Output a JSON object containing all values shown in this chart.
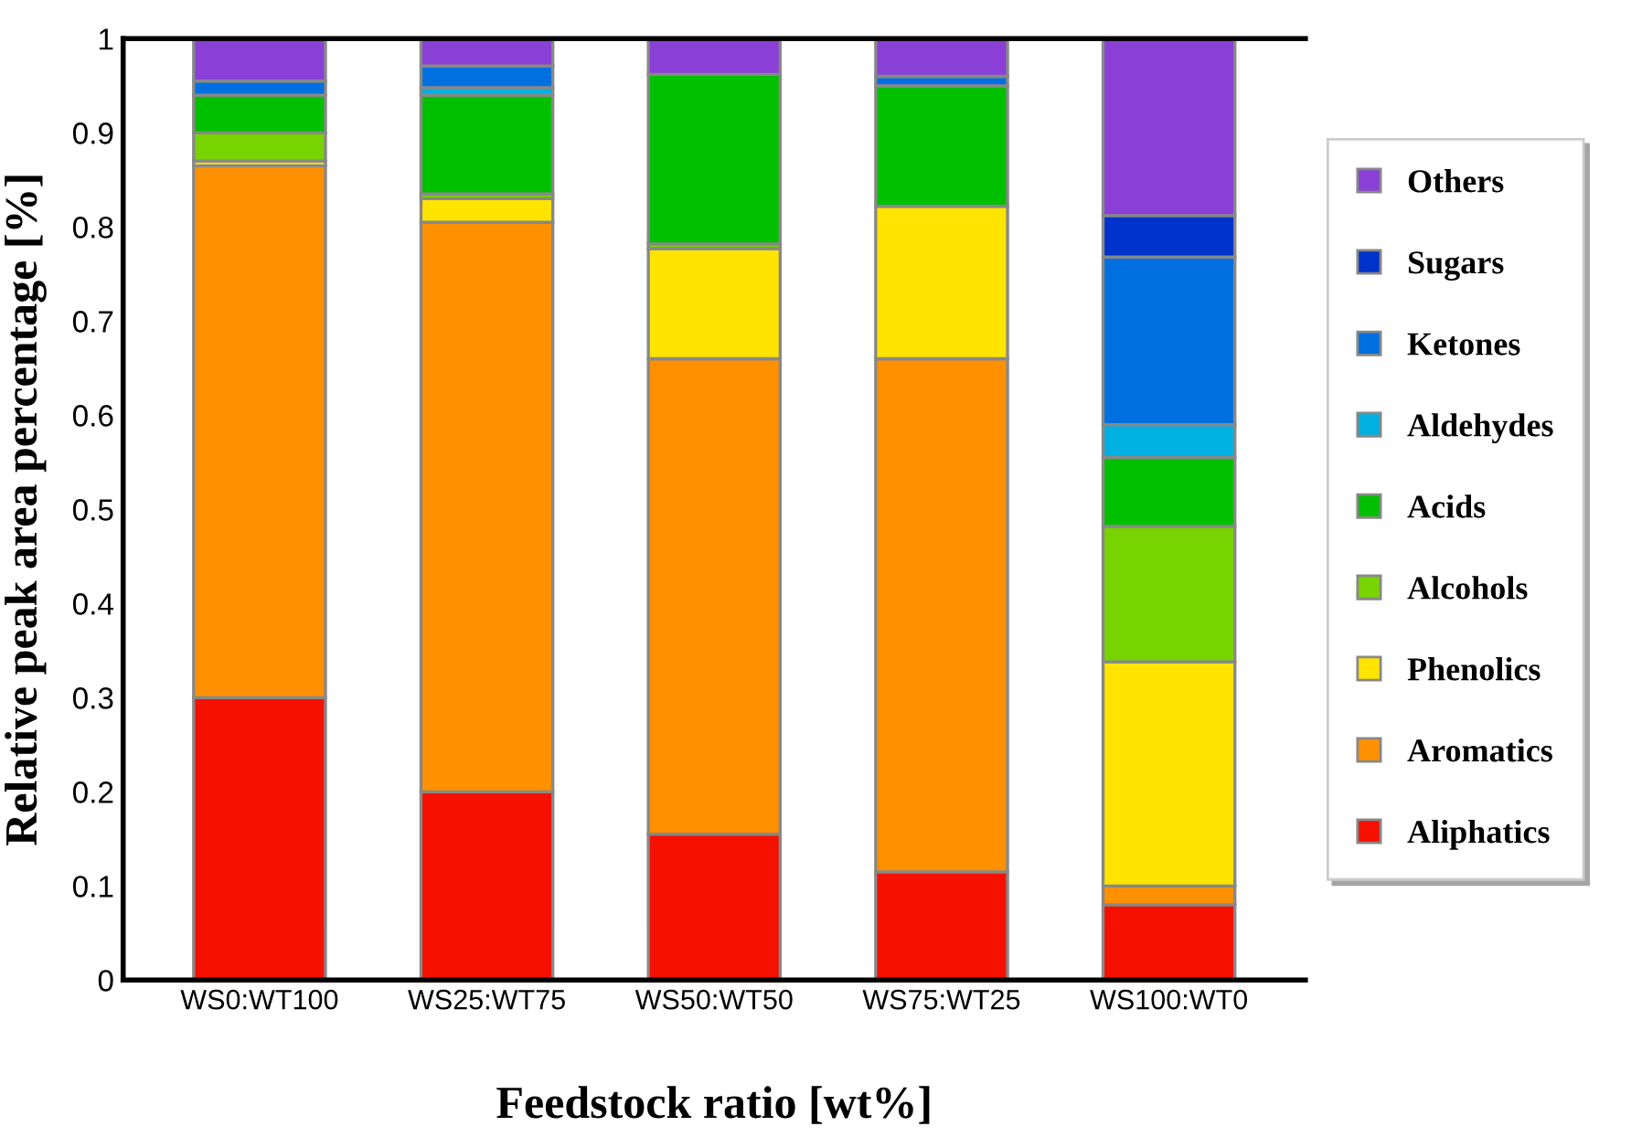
{
  "chart_data": {
    "type": "bar",
    "stacked": true,
    "xlabel": "Feedstock ratio [wt%]",
    "ylabel": "Relative peak area percentage [%]",
    "categories": [
      "WS0:WT100",
      "WS25:WT75",
      "WS50:WT50",
      "WS75:WT25",
      "WS100:WT0"
    ],
    "ylim": [
      0,
      1
    ],
    "yticks": [
      0,
      0.1,
      0.2,
      0.3,
      0.4,
      0.5,
      0.6,
      0.7,
      0.8,
      0.9,
      1
    ],
    "grid": false,
    "legend": "right",
    "series": [
      {
        "name": "Aliphatics",
        "color": "#f51000",
        "values": [
          0.3,
          0.2,
          0.155,
          0.115,
          0.08
        ]
      },
      {
        "name": "Aromatics",
        "color": "#ff9000",
        "values": [
          0.565,
          0.605,
          0.505,
          0.545,
          0.02
        ]
      },
      {
        "name": "Phenolics",
        "color": "#ffe400",
        "values": [
          0.005,
          0.025,
          0.117,
          0.162,
          0.238
        ]
      },
      {
        "name": "Alcohols",
        "color": "#77d400",
        "values": [
          0.03,
          0.005,
          0.005,
          0.0,
          0.144
        ]
      },
      {
        "name": "Acids",
        "color": "#00c000",
        "values": [
          0.04,
          0.105,
          0.18,
          0.128,
          0.073
        ]
      },
      {
        "name": "Aldehydes",
        "color": "#00b0e0",
        "values": [
          0.0,
          0.008,
          0.0,
          0.0,
          0.035
        ]
      },
      {
        "name": "Ketones",
        "color": "#0070e0",
        "values": [
          0.015,
          0.023,
          0.0,
          0.01,
          0.178
        ]
      },
      {
        "name": "Sugars",
        "color": "#0033cc",
        "values": [
          0.0,
          0.0,
          0.0,
          0.0,
          0.044
        ]
      },
      {
        "name": "Others",
        "color": "#8a3fd6",
        "values": [
          0.045,
          0.031,
          0.038,
          0.04,
          0.188
        ]
      }
    ]
  }
}
